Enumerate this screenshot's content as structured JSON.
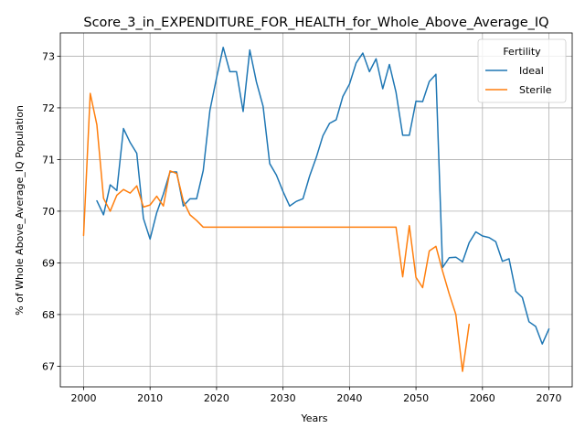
{
  "chart_data": {
    "type": "line",
    "title": "Score_3_in_EXPENDITURE_FOR_HEALTH_for_Whole_Above_Average_IQ",
    "xlabel": "Years",
    "ylabel": "% of Whole Above_Average_IQ Population",
    "xlim": [
      1996.5,
      2073.5
    ],
    "ylim": [
      66.6,
      73.45
    ],
    "xticks": [
      2000,
      2010,
      2020,
      2030,
      2040,
      2050,
      2060,
      2070
    ],
    "yticks": [
      67,
      68,
      69,
      70,
      71,
      72,
      73
    ],
    "grid": true,
    "legend": {
      "title": "Fertility",
      "placement": "top-right"
    },
    "series": [
      {
        "name": "Ideal",
        "color": "#1f77b4",
        "x": [
          2002,
          2003,
          2004,
          2005,
          2006,
          2007,
          2008,
          2009,
          2010,
          2011,
          2012,
          2013,
          2014,
          2015,
          2016,
          2017,
          2018,
          2019,
          2020,
          2021,
          2022,
          2023,
          2024,
          2025,
          2026,
          2027,
          2028,
          2029,
          2030,
          2031,
          2032,
          2033,
          2034,
          2035,
          2036,
          2037,
          2038,
          2039,
          2040,
          2041,
          2042,
          2043,
          2044,
          2045,
          2046,
          2047,
          2048,
          2049,
          2050,
          2051,
          2052,
          2053,
          2054,
          2055,
          2056,
          2057,
          2058,
          2059,
          2060,
          2061,
          2062,
          2063,
          2064,
          2065,
          2066,
          2067,
          2068,
          2069,
          2070
        ],
        "y": [
          70.2,
          69.93,
          70.51,
          70.4,
          71.6,
          71.33,
          71.12,
          69.86,
          69.46,
          69.97,
          70.33,
          70.76,
          70.76,
          70.1,
          70.24,
          70.24,
          70.79,
          71.95,
          72.58,
          73.17,
          72.7,
          72.7,
          71.93,
          73.12,
          72.5,
          72.03,
          70.92,
          70.7,
          70.38,
          70.1,
          70.19,
          70.24,
          70.68,
          71.04,
          71.46,
          71.7,
          71.77,
          72.22,
          72.46,
          72.87,
          73.06,
          72.7,
          72.95,
          72.37,
          72.84,
          72.3,
          71.47,
          71.47,
          72.13,
          72.12,
          72.51,
          72.65,
          68.91,
          69.1,
          69.11,
          69.02,
          69.39,
          69.6,
          69.52,
          69.49,
          69.41,
          69.03,
          69.08,
          68.45,
          68.33,
          67.86,
          67.77,
          67.43,
          67.72
        ]
      },
      {
        "name": "Sterile",
        "color": "#ff7f0e",
        "x": [
          2000,
          2001,
          2002,
          2003,
          2004,
          2005,
          2006,
          2007,
          2008,
          2009,
          2010,
          2011,
          2012,
          2013,
          2014,
          2015,
          2016,
          2017,
          2018,
          2019,
          2020,
          2021,
          2022,
          2023,
          2024,
          2025,
          2026,
          2027,
          2028,
          2029,
          2030,
          2031,
          2032,
          2033,
          2034,
          2035,
          2036,
          2037,
          2038,
          2039,
          2040,
          2041,
          2042,
          2043,
          2044,
          2045,
          2046,
          2047,
          2048,
          2049,
          2050,
          2051,
          2052,
          2053,
          2054,
          2055,
          2056,
          2057,
          2058
        ],
        "y": [
          69.53,
          72.28,
          71.67,
          70.25,
          70.0,
          70.31,
          70.42,
          70.35,
          70.49,
          70.08,
          70.12,
          70.29,
          70.1,
          70.78,
          70.73,
          70.2,
          69.93,
          69.82,
          69.69,
          69.69,
          69.69,
          69.69,
          69.69,
          69.69,
          69.69,
          69.69,
          69.69,
          69.69,
          69.69,
          69.69,
          69.69,
          69.69,
          69.69,
          69.69,
          69.69,
          69.69,
          69.69,
          69.69,
          69.69,
          69.69,
          69.69,
          69.69,
          69.69,
          69.69,
          69.69,
          69.69,
          69.69,
          69.69,
          68.73,
          69.72,
          68.72,
          68.52,
          69.23,
          69.32,
          68.84,
          68.4,
          68.0,
          66.9,
          67.81
        ]
      }
    ]
  }
}
